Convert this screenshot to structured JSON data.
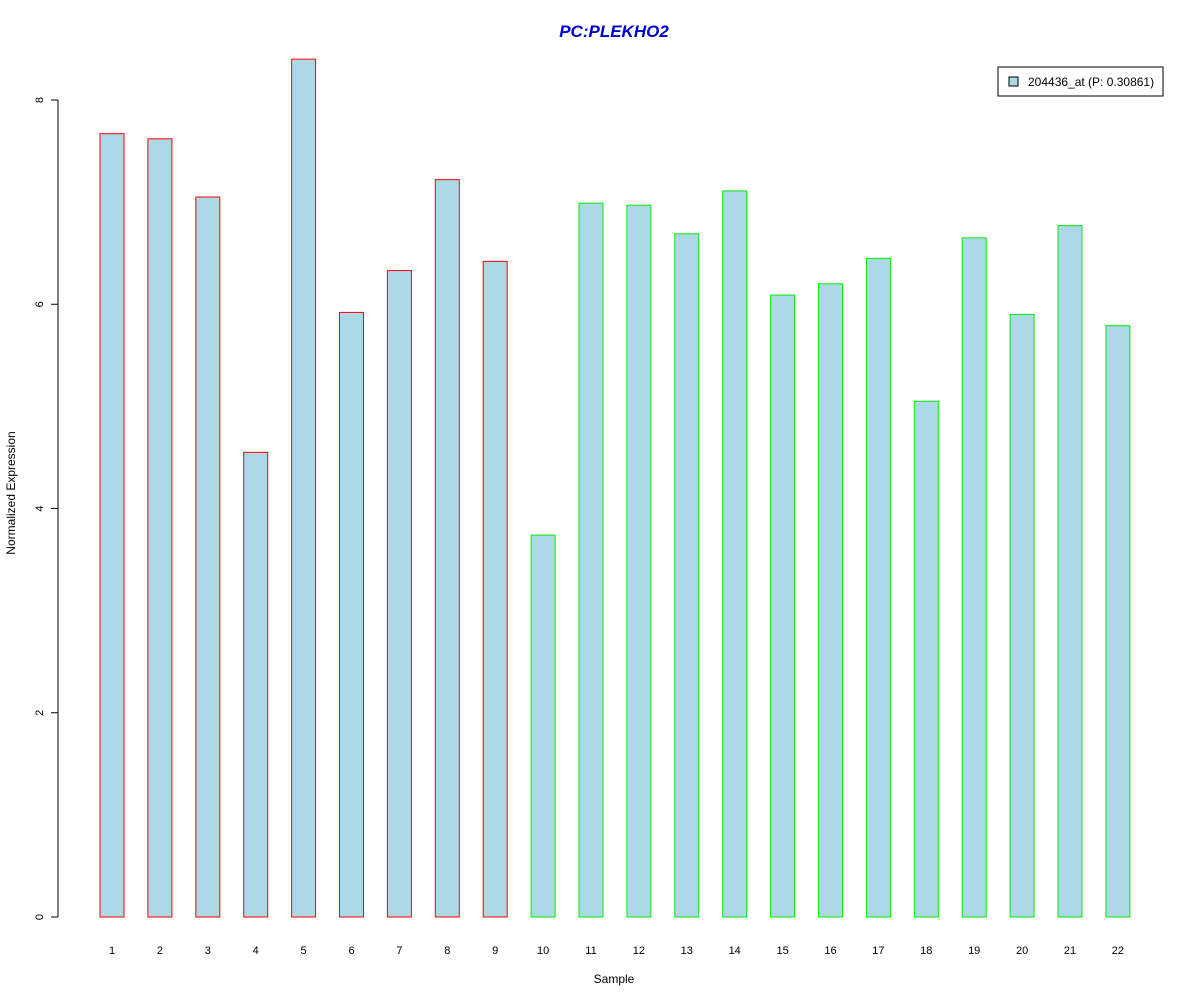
{
  "colors": {
    "title": "#0000cc",
    "bar_fill": "#add8e6",
    "group_a_border": "#ff0000",
    "group_b_border": "#00ee00",
    "axis": "#000000",
    "legend_border": "#000000"
  },
  "chart_data": {
    "type": "bar",
    "title": "PC:PLEKHO2",
    "xlabel": "Sample",
    "ylabel": "Normalized Expression",
    "ylim": [
      0,
      8.4
    ],
    "yticks": [
      "0",
      "2",
      "4",
      "6",
      "8"
    ],
    "grid": false,
    "legend_position": "top-right",
    "categories": [
      "1",
      "2",
      "3",
      "4",
      "5",
      "6",
      "7",
      "8",
      "9",
      "10",
      "11",
      "12",
      "13",
      "14",
      "15",
      "16",
      "17",
      "18",
      "19",
      "20",
      "21",
      "22"
    ],
    "series": [
      {
        "name": "204436_at (P: 0.30861)",
        "values": [
          7.67,
          7.62,
          7.05,
          4.55,
          8.4,
          5.92,
          6.33,
          7.22,
          6.42,
          3.74,
          6.99,
          6.97,
          6.69,
          7.11,
          6.09,
          6.2,
          6.45,
          5.05,
          6.65,
          5.9,
          6.77,
          5.79
        ]
      }
    ],
    "bar_groups": [
      "a",
      "a",
      "a",
      "a",
      "a",
      "a",
      "a",
      "a",
      "a",
      "b",
      "b",
      "b",
      "b",
      "b",
      "b",
      "b",
      "b",
      "b",
      "b",
      "b",
      "b",
      "b"
    ]
  }
}
